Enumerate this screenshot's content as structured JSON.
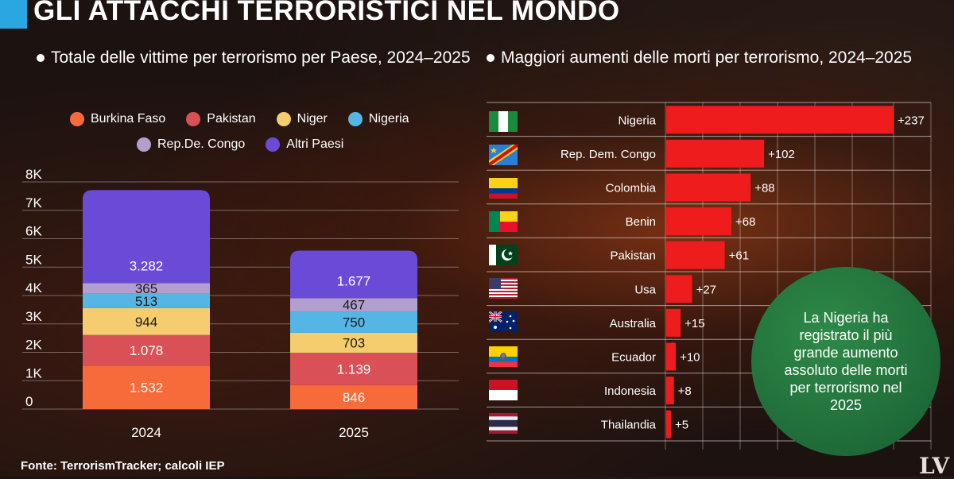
{
  "header": {
    "title": "GLI ATTACCHI TERRORISTICI NEL MONDO"
  },
  "source": "Fonte: TerrorismTracker; calcoli IEP",
  "logo": "LV",
  "callout": {
    "text": "La Nigeria ha registrato il più grande aumento assoluto delle morti per terrorismo nel 2025"
  },
  "chart_data": [
    {
      "type": "bar",
      "stacked": true,
      "title": "Totale delle vittime per terrorismo per Paese, 2024–2025",
      "legend_position": "top",
      "categories": [
        "2024",
        "2025"
      ],
      "ylim": [
        0,
        8000
      ],
      "yticks": [
        "0",
        "1K",
        "2K",
        "3K",
        "4K",
        "5K",
        "6K",
        "7K",
        "8K"
      ],
      "grid": true,
      "series": [
        {
          "name": "Burkina Faso",
          "color": "#f76b3a",
          "values": [
            1532,
            846
          ],
          "labels": [
            "1.532",
            "846"
          ]
        },
        {
          "name": "Pakistan",
          "color": "#d95057",
          "values": [
            1078,
            1139
          ],
          "labels": [
            "1.078",
            "1.139"
          ]
        },
        {
          "name": "Niger",
          "color": "#f5cd6e",
          "values": [
            944,
            703
          ],
          "labels": [
            "944",
            "703"
          ]
        },
        {
          "name": "Nigeria",
          "color": "#55b6e6",
          "values": [
            513,
            750
          ],
          "labels": [
            "513",
            "750"
          ]
        },
        {
          "name": "Rep.De. Congo",
          "color": "#b39fce",
          "values": [
            365,
            467
          ],
          "labels": [
            "365",
            "467"
          ]
        },
        {
          "name": "Altri Paesi",
          "color": "#6a4bd8",
          "values": [
            3282,
            1677
          ],
          "labels": [
            "3.282",
            "1.677"
          ]
        }
      ]
    },
    {
      "type": "bar",
      "orientation": "horizontal",
      "title": "Maggiori aumenti delle morti per terrorismo, 2024–2025",
      "bar_color": "#ee1c1c",
      "grid": true,
      "categories": [
        "Nigeria",
        "Rep. Dem. Congo",
        "Colombia",
        "Benin",
        "Pakistan",
        "Usa",
        "Australia",
        "Ecuador",
        "Indonesia",
        "Thailandia"
      ],
      "values": [
        237,
        102,
        88,
        68,
        61,
        27,
        15,
        10,
        8,
        5
      ],
      "labels": [
        "+237",
        "+102",
        "+88",
        "+68",
        "+61",
        "+27",
        "+15",
        "+10",
        "+8",
        "+5"
      ],
      "flags": [
        "nigeria-flag-icon",
        "congo-flag-icon",
        "colombia-flag-icon",
        "benin-flag-icon",
        "pakistan-flag-icon",
        "usa-flag-icon",
        "australia-flag-icon",
        "ecuador-flag-icon",
        "indonesia-flag-icon",
        "thailand-flag-icon"
      ]
    }
  ]
}
